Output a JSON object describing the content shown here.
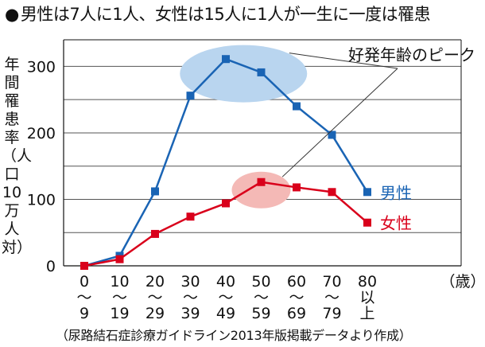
{
  "title": "男性は7人に1人、女性は15人に1人が一生に一度は罹患",
  "source": "（尿路結石症診療ガイドライン2013年版掲載データより作成）",
  "chart_data": {
    "type": "line",
    "title": "男性は7人に1人、女性は15人に1人が一生に一度は罹患",
    "ylabel": "年間罹患率（人口10万人対）",
    "xlabel": "",
    "x_unit": "（歳）",
    "ylim": [
      0,
      340
    ],
    "yticks": [
      0,
      100,
      200,
      300
    ],
    "grid": true,
    "categories": [
      [
        "0",
        "〜",
        "9"
      ],
      [
        "10",
        "〜",
        "19"
      ],
      [
        "20",
        "〜",
        "29"
      ],
      [
        "30",
        "〜",
        "39"
      ],
      [
        "40",
        "〜",
        "49"
      ],
      [
        "50",
        "〜",
        "59"
      ],
      [
        "60",
        "〜",
        "69"
      ],
      [
        "70",
        "〜",
        "79"
      ],
      [
        "80",
        "以",
        "上"
      ]
    ],
    "series": [
      {
        "name": "男性",
        "color": "#1a64b4",
        "values": [
          0,
          15,
          112,
          256,
          311,
          291,
          240,
          197,
          111
        ]
      },
      {
        "name": "女性",
        "color": "#d9001b",
        "values": [
          0,
          10,
          48,
          74,
          94,
          126,
          118,
          111,
          65
        ]
      }
    ],
    "annotation": {
      "text": "好発年齢のピーク",
      "peaks": [
        {
          "series": "男性",
          "from_index": 4,
          "to_index": 5,
          "color": "#b9d5ef"
        },
        {
          "series": "女性",
          "from_index": 5,
          "to_index": 5,
          "color": "#f4b9b6"
        }
      ]
    }
  }
}
